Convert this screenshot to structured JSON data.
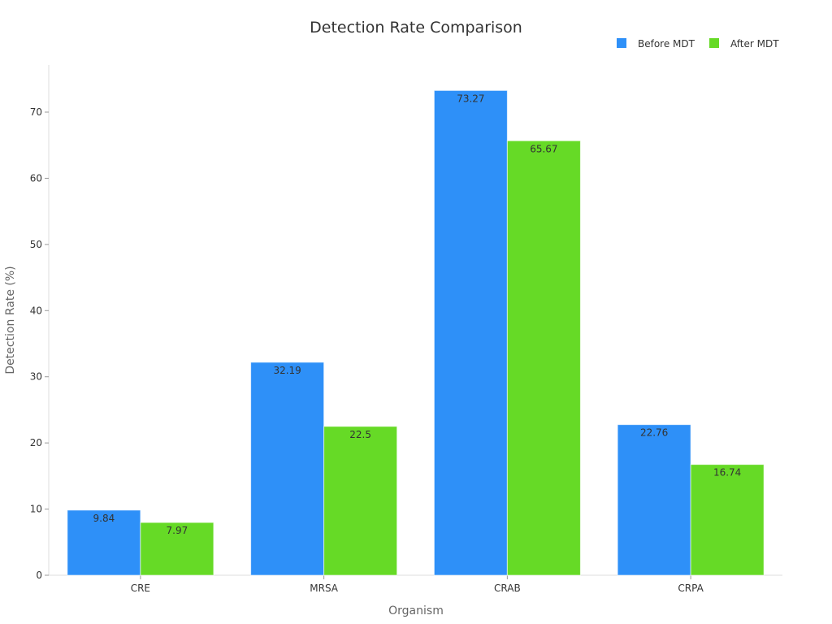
{
  "chart_data": {
    "type": "bar",
    "title": "Detection Rate Comparison",
    "xlabel": "Organism",
    "ylabel": "Detection Rate (%)",
    "categories": [
      "CRE",
      "MRSA",
      "CRAB",
      "CRPA"
    ],
    "series": [
      {
        "name": "Before MDT",
        "color": "#2e90f8",
        "values": [
          9.84,
          32.19,
          73.27,
          22.76
        ]
      },
      {
        "name": "After MDT",
        "color": "#66da26",
        "values": [
          7.97,
          22.5,
          65.67,
          16.74
        ]
      }
    ],
    "yticks": [
      0,
      10,
      20,
      30,
      40,
      50,
      60,
      70
    ],
    "ylim": [
      0,
      77
    ],
    "grid": false,
    "legend": "top-right"
  }
}
